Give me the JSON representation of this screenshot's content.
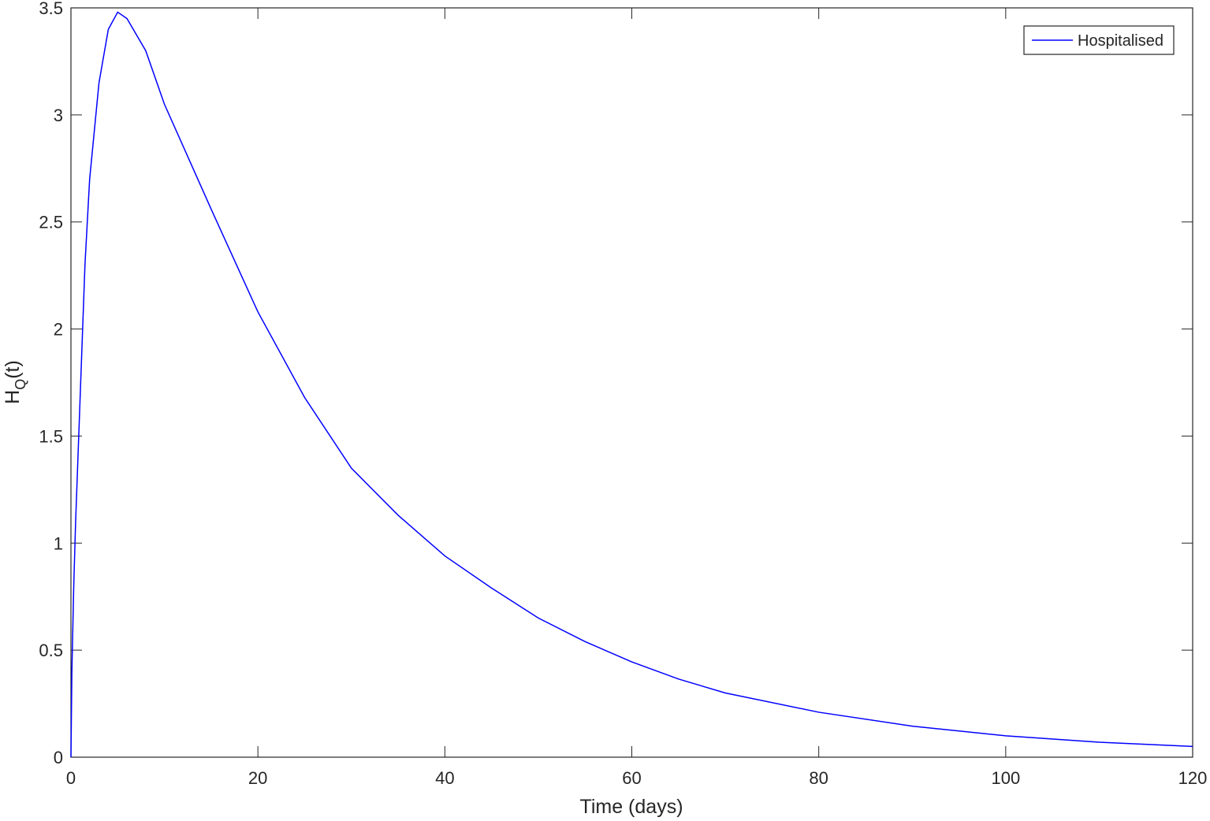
{
  "chart_data": {
    "type": "line",
    "xlabel": "Time (days)",
    "ylabel": {
      "main": "H",
      "subscript": "Q",
      "suffix": "(t)"
    },
    "x": [
      0,
      0.1,
      0.3,
      0.5,
      0.75,
      1,
      1.5,
      2,
      3,
      4,
      5,
      6,
      8,
      10,
      15,
      20,
      25,
      30,
      35,
      40,
      45,
      50,
      55,
      60,
      65,
      70,
      80,
      90,
      100,
      110,
      120
    ],
    "series": [
      {
        "name": "Hospitalised",
        "color": "#0000ff",
        "values": [
          0,
          0.4,
          0.8,
          1.1,
          1.4,
          1.7,
          2.3,
          2.7,
          3.15,
          3.4,
          3.48,
          3.45,
          3.3,
          3.05,
          2.56,
          2.08,
          1.68,
          1.35,
          1.13,
          0.94,
          0.79,
          0.65,
          0.54,
          0.445,
          0.365,
          0.3,
          0.21,
          0.145,
          0.1,
          0.07,
          0.05
        ]
      }
    ],
    "xlim": [
      0,
      120
    ],
    "xticks": [
      0,
      20,
      40,
      60,
      80,
      100,
      120
    ],
    "ylim": [
      0,
      3.5
    ],
    "yticks": [
      0,
      0.5,
      1,
      1.5,
      2,
      2.5,
      3,
      3.5
    ],
    "grid": false,
    "legend": "northeast"
  }
}
